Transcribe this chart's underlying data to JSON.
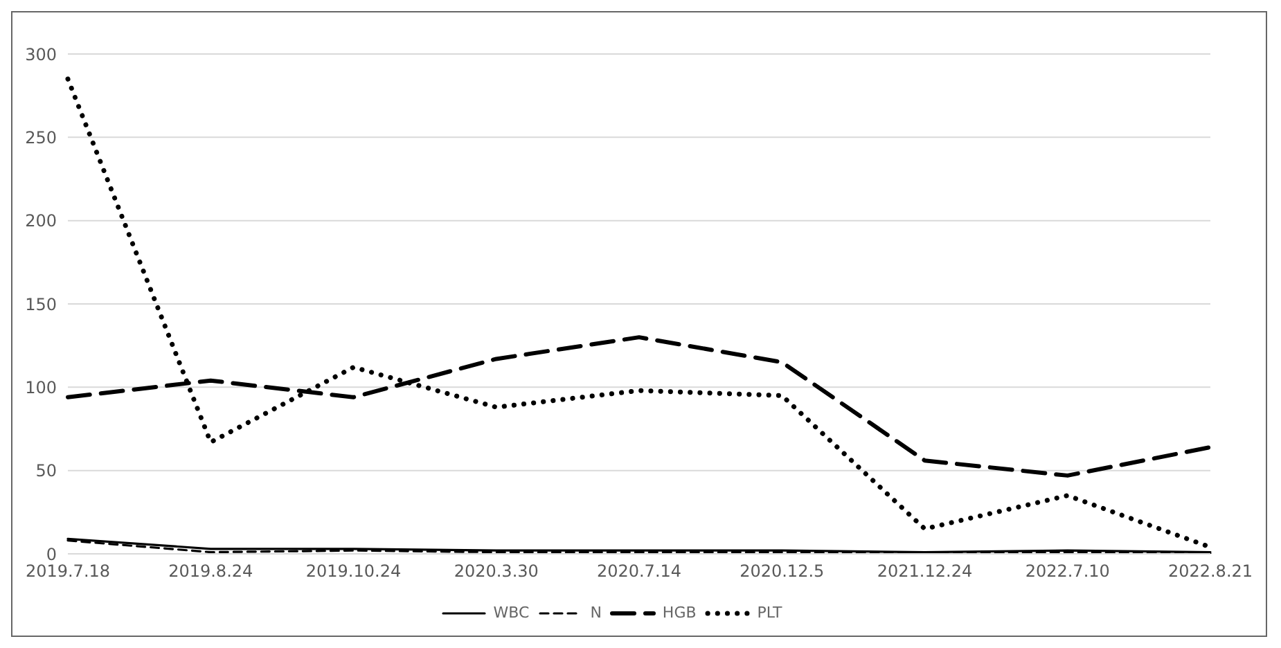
{
  "chart_data": {
    "type": "line",
    "categories": [
      "2019.7.18",
      "2019.8.24",
      "2019.10.24",
      "2020.3.30",
      "2020.7.14",
      "2020.12.5",
      "2021.12.24",
      "2022.7.10",
      "2022.8.21"
    ],
    "series": [
      {
        "name": "WBC",
        "color": "#000000",
        "line_style": "solid",
        "values": [
          9,
          3,
          3,
          2,
          2,
          2,
          1,
          2,
          1
        ]
      },
      {
        "name": "N",
        "color": "#000000",
        "line_style": "dashed",
        "values": [
          8,
          1,
          2,
          1,
          1,
          1,
          0,
          1,
          0
        ]
      },
      {
        "name": "HGB",
        "color": "#000000",
        "line_style": "dashed",
        "values": [
          94,
          104,
          94,
          117,
          130,
          115,
          56,
          47,
          64
        ]
      },
      {
        "name": "PLT",
        "color": "#000000",
        "line_style": "dotted",
        "values": [
          285,
          67,
          112,
          88,
          98,
          95,
          15,
          35,
          4
        ]
      }
    ],
    "ylim": [
      0,
      300
    ],
    "yticks": [
      0,
      50,
      100,
      150,
      200,
      250,
      300
    ],
    "grid": "y",
    "legend": "bottom",
    "marker": "none"
  }
}
